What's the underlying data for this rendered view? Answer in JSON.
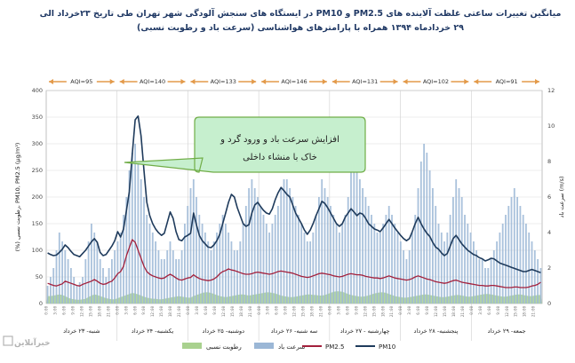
{
  "title_line1": "میانگین تغییرات ساعتی غلظت آلاینده های PM2.5 و PM10 در ایستگاه های سنجش آلودگی شهر تهران طی تاریخ ۲۳خرداد الی",
  "title_line2": "۲۹ خردادماه ۱۳۹۴ همراه با پارامترهای هواشناسی (سرعت باد و رطوبت نسبی)",
  "callout_line1": "افزایش سرعت باد و ورود گرد و",
  "callout_line2": "خاک با منشاء داخلی",
  "logo_text": "خبرآنلاین",
  "colors": {
    "pm10": "#1f3b5c",
    "pm25": "#a3203c",
    "wind": "#9bb7d6",
    "humidity": "#a9d18e",
    "aqi_arrow": "#e39a4a",
    "callout_fill": "#c6efce",
    "callout_stroke": "#70ad47",
    "title": "#1f3864"
  },
  "chart_data": {
    "type": "line",
    "title": "میانگین تغییرات ساعتی غلظت آلاینده های PM2.5 و PM10 در ایستگاه های سنجش آلودگی شهر تهران طی تاریخ ۲۳خرداد الی ۲۹ خردادماه ۱۳۹۴ همراه با پارامترهای هواشناسی (سرعت باد و رطوبت نسبی)",
    "ylabel": "(%) رطوبت نسبی, PM10, PM2.5 (μg/m³)",
    "ylabel_right": "سرعت باد (m/s)",
    "ylim": [
      0,
      400
    ],
    "ylim_right": [
      0,
      12
    ],
    "yticks": [
      "0",
      "50",
      "100",
      "150",
      "200",
      "250",
      "300",
      "350",
      "400"
    ],
    "yticks_right": [
      "0",
      "2",
      "4",
      "6",
      "8",
      "10",
      "12"
    ],
    "days": [
      {
        "label": "شنبه- ۲۳ خرداد",
        "aqi": "AQI=95"
      },
      {
        "label": "یکشنبه- ۲۴ خرداد",
        "aqi": "AQI=140"
      },
      {
        "label": "دوشنبه- ۲۵ خرداد",
        "aqi": "AQI=133"
      },
      {
        "label": "سه شنبه- ۲۶ خرداد",
        "aqi": "AQI=146"
      },
      {
        "label": "چهارشنبه - ۲۷ خرداد",
        "aqi": "AQI=131"
      },
      {
        "label": "پنجشنبه- ۲۸ خرداد",
        "aqi": "AQI=102"
      },
      {
        "label": "جمعه- ۲۹ خرداد",
        "aqi": "AQI=91"
      }
    ],
    "hour_labels": [
      "0:00",
      "3:00",
      "6:00",
      "9:00",
      "12:00",
      "15:00",
      "18:00",
      "21:00"
    ],
    "legend": [
      "رطوبت نسبی",
      "سرعت باد",
      "PM2.5",
      "PM10"
    ],
    "series": [
      {
        "name": "PM10",
        "axis": "left",
        "values": [
          95,
          92,
          90,
          91,
          96,
          102,
          110,
          105,
          98,
          92,
          90,
          88,
          94,
          100,
          108,
          116,
          122,
          115,
          96,
          90,
          92,
          100,
          108,
          118,
          135,
          125,
          140,
          175,
          210,
          280,
          345,
          352,
          315,
          250,
          190,
          165,
          150,
          140,
          133,
          128,
          132,
          152,
          172,
          160,
          135,
          120,
          118,
          125,
          128,
          132,
          170,
          148,
          128,
          118,
          112,
          106,
          105,
          110,
          118,
          130,
          150,
          170,
          190,
          205,
          200,
          180,
          165,
          150,
          145,
          148,
          170,
          185,
          190,
          182,
          175,
          170,
          168,
          178,
          195,
          208,
          218,
          212,
          205,
          200,
          185,
          170,
          160,
          150,
          138,
          130,
          138,
          150,
          165,
          178,
          192,
          188,
          180,
          170,
          160,
          150,
          145,
          150,
          162,
          170,
          178,
          172,
          165,
          170,
          168,
          160,
          150,
          145,
          140,
          138,
          135,
          142,
          150,
          158,
          150,
          142,
          135,
          128,
          122,
          118,
          122,
          135,
          150,
          162,
          150,
          140,
          132,
          126,
          115,
          106,
          102,
          95,
          90,
          94,
          108,
          122,
          128,
          120,
          112,
          106,
          100,
          96,
          92,
          90,
          86,
          84,
          80,
          82,
          85,
          84,
          80,
          76,
          74,
          72,
          70,
          68,
          66,
          64,
          62,
          60,
          60,
          62,
          64,
          62,
          60,
          58
        ]
      },
      {
        "name": "PM2.5",
        "axis": "left",
        "values": [
          38,
          36,
          34,
          33,
          35,
          37,
          42,
          40,
          38,
          36,
          34,
          33,
          36,
          38,
          40,
          42,
          45,
          42,
          38,
          36,
          37,
          40,
          42,
          48,
          56,
          60,
          70,
          90,
          105,
          120,
          115,
          100,
          85,
          70,
          60,
          55,
          52,
          50,
          48,
          47,
          48,
          52,
          55,
          52,
          48,
          45,
          44,
          46,
          48,
          49,
          54,
          50,
          47,
          45,
          44,
          43,
          44,
          46,
          50,
          56,
          60,
          62,
          65,
          63,
          62,
          60,
          58,
          56,
          55,
          55,
          56,
          58,
          59,
          58,
          57,
          56,
          55,
          56,
          58,
          60,
          61,
          60,
          59,
          58,
          57,
          55,
          53,
          51,
          50,
          49,
          50,
          52,
          54,
          56,
          57,
          56,
          55,
          54,
          52,
          51,
          50,
          51,
          53,
          55,
          56,
          55,
          54,
          54,
          53,
          51,
          50,
          49,
          48,
          48,
          47,
          48,
          50,
          52,
          50,
          48,
          47,
          46,
          45,
          44,
          45,
          47,
          50,
          52,
          50,
          48,
          46,
          45,
          43,
          41,
          40,
          39,
          38,
          39,
          41,
          43,
          44,
          42,
          40,
          39,
          38,
          37,
          36,
          35,
          34,
          34,
          33,
          33,
          34,
          34,
          33,
          32,
          31,
          30,
          30,
          30,
          31,
          31,
          30,
          30,
          30,
          31,
          33,
          34,
          36,
          40
        ]
      },
      {
        "name": "سرعت باد",
        "axis": "right",
        "type": "bar",
        "values": [
          1,
          1.5,
          2,
          3,
          4,
          3.5,
          3,
          2.5,
          2,
          1.5,
          1,
          1.2,
          1.5,
          2.5,
          3.5,
          4.5,
          4,
          3.5,
          2.5,
          2,
          1.5,
          2,
          2.5,
          3,
          3.5,
          4,
          5,
          6,
          7.5,
          8.5,
          9,
          8,
          7,
          6,
          5,
          4.5,
          4,
          3.5,
          3,
          2.5,
          2.5,
          3,
          3.5,
          3,
          2.5,
          2.5,
          3,
          4.5,
          5.5,
          6.5,
          7,
          6,
          5,
          4.5,
          4,
          3.5,
          3,
          3.5,
          4,
          4.5,
          5,
          4.5,
          4,
          3.5,
          3,
          3,
          3.5,
          4.5,
          5.5,
          6.5,
          7,
          6.5,
          6,
          5.5,
          5,
          4.5,
          4,
          4.5,
          5,
          5.5,
          6.5,
          7,
          7,
          6.5,
          6,
          5.5,
          5,
          4.5,
          4,
          3.5,
          3.5,
          4,
          5,
          6,
          7,
          6.5,
          6,
          5.5,
          5,
          4.5,
          4,
          4.5,
          5,
          6,
          7.5,
          8,
          7.5,
          7,
          6.5,
          6,
          5.5,
          5,
          4.5,
          4,
          4,
          4.5,
          5,
          5.5,
          5,
          4.5,
          4,
          3.5,
          3,
          2.5,
          3,
          4,
          5,
          6.5,
          8,
          9,
          8.5,
          7.5,
          6.5,
          5.5,
          4.5,
          4,
          3.5,
          4,
          5,
          6,
          7,
          6.5,
          6,
          5,
          4.5,
          4,
          3.5,
          3,
          2.5,
          2.5,
          2,
          2,
          2.5,
          3,
          3.5,
          4,
          4.5,
          5,
          5.5,
          6,
          6.5,
          6,
          5.5,
          5,
          4.5,
          4,
          3.5,
          3,
          2.5,
          2
        ]
      },
      {
        "name": "رطوبت نسبی",
        "axis": "left",
        "type": "area",
        "values": [
          14,
          14,
          15,
          16,
          17,
          16,
          14,
          11,
          9,
          8,
          7,
          7,
          8,
          9,
          12,
          15,
          17,
          16,
          14,
          12,
          10,
          9,
          8,
          8,
          10,
          12,
          14,
          16,
          18,
          20,
          19,
          17,
          15,
          13,
          11,
          10,
          9,
          9,
          8,
          8,
          9,
          10,
          11,
          12,
          13,
          14,
          13,
          12,
          11,
          11,
          14,
          16,
          18,
          20,
          21,
          21,
          20,
          18,
          16,
          14,
          13,
          12,
          13,
          14,
          15,
          16,
          17,
          17,
          16,
          15,
          16,
          17,
          18,
          19,
          20,
          21,
          21,
          20,
          19,
          17,
          15,
          14,
          13,
          12,
          12,
          13,
          14,
          15,
          16,
          17,
          17,
          16,
          16,
          15,
          15,
          16,
          18,
          20,
          22,
          23,
          23,
          22,
          20,
          18,
          16,
          15,
          14,
          13,
          13,
          14,
          15,
          17,
          19,
          20,
          21,
          21,
          20,
          18,
          16,
          14,
          13,
          12,
          11,
          11,
          12,
          13,
          14,
          15,
          16,
          17,
          17,
          16,
          15,
          14,
          13,
          12,
          12,
          13,
          14,
          15,
          16,
          16,
          15,
          14,
          13,
          13,
          14,
          15,
          16,
          17,
          18,
          18,
          17,
          16,
          15,
          14,
          13,
          13,
          14,
          15,
          16,
          17,
          17,
          16,
          15,
          14,
          14,
          15,
          16,
          16
        ]
      }
    ]
  }
}
